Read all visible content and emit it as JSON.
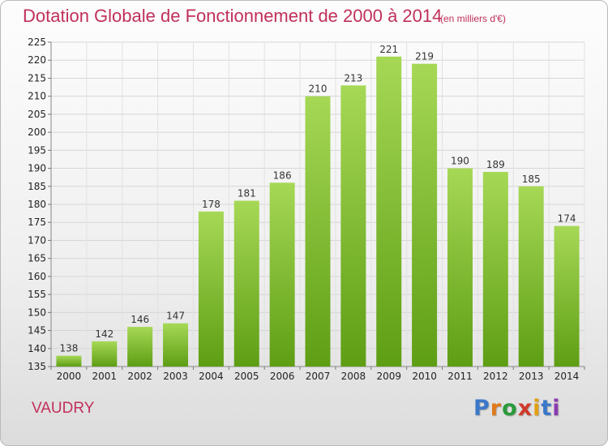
{
  "header": {
    "title": "Dotation Globale de Fonctionnement de 2000 à 2014",
    "subtitle": "(en milliers d'€)"
  },
  "commune": "VAUDRY",
  "logo": {
    "text": "Proxiti",
    "letter_colors": [
      "#3c78c8",
      "#e07a1c",
      "#2a9a3a",
      "#d03a2a",
      "#e0a010",
      "#3c78c8",
      "#8a3ab0"
    ]
  },
  "chart_data": {
    "type": "bar",
    "categories": [
      "2000",
      "2001",
      "2002",
      "2003",
      "2004",
      "2005",
      "2006",
      "2007",
      "2008",
      "2009",
      "2010",
      "2011",
      "2012",
      "2013",
      "2014"
    ],
    "values": [
      138,
      142,
      146,
      147,
      178,
      181,
      186,
      210,
      213,
      221,
      219,
      190,
      189,
      185,
      174
    ],
    "ylim": [
      135,
      225
    ],
    "yticks": [
      135,
      140,
      145,
      150,
      155,
      160,
      165,
      170,
      175,
      180,
      185,
      190,
      195,
      200,
      205,
      210,
      215,
      220,
      225
    ],
    "bar_color": "#7cc030",
    "grid": true,
    "legend": "none"
  }
}
